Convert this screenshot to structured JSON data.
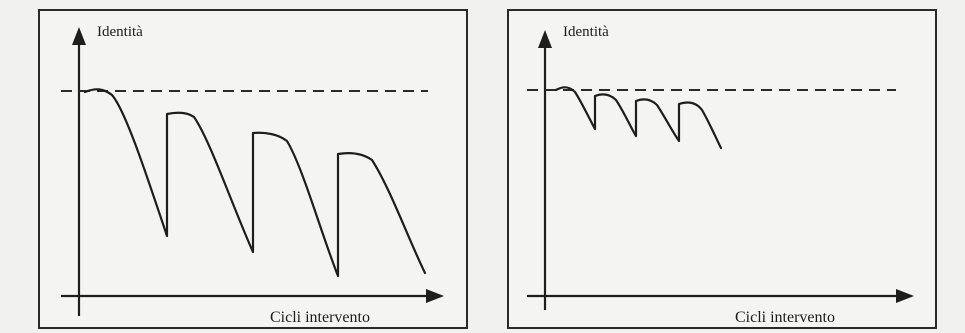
{
  "panels": [
    {
      "y_axis_label": "Identità",
      "x_axis_label": "Cicli intervento"
    },
    {
      "y_axis_label": "Identità",
      "x_axis_label": "Cicli intervento"
    }
  ]
}
